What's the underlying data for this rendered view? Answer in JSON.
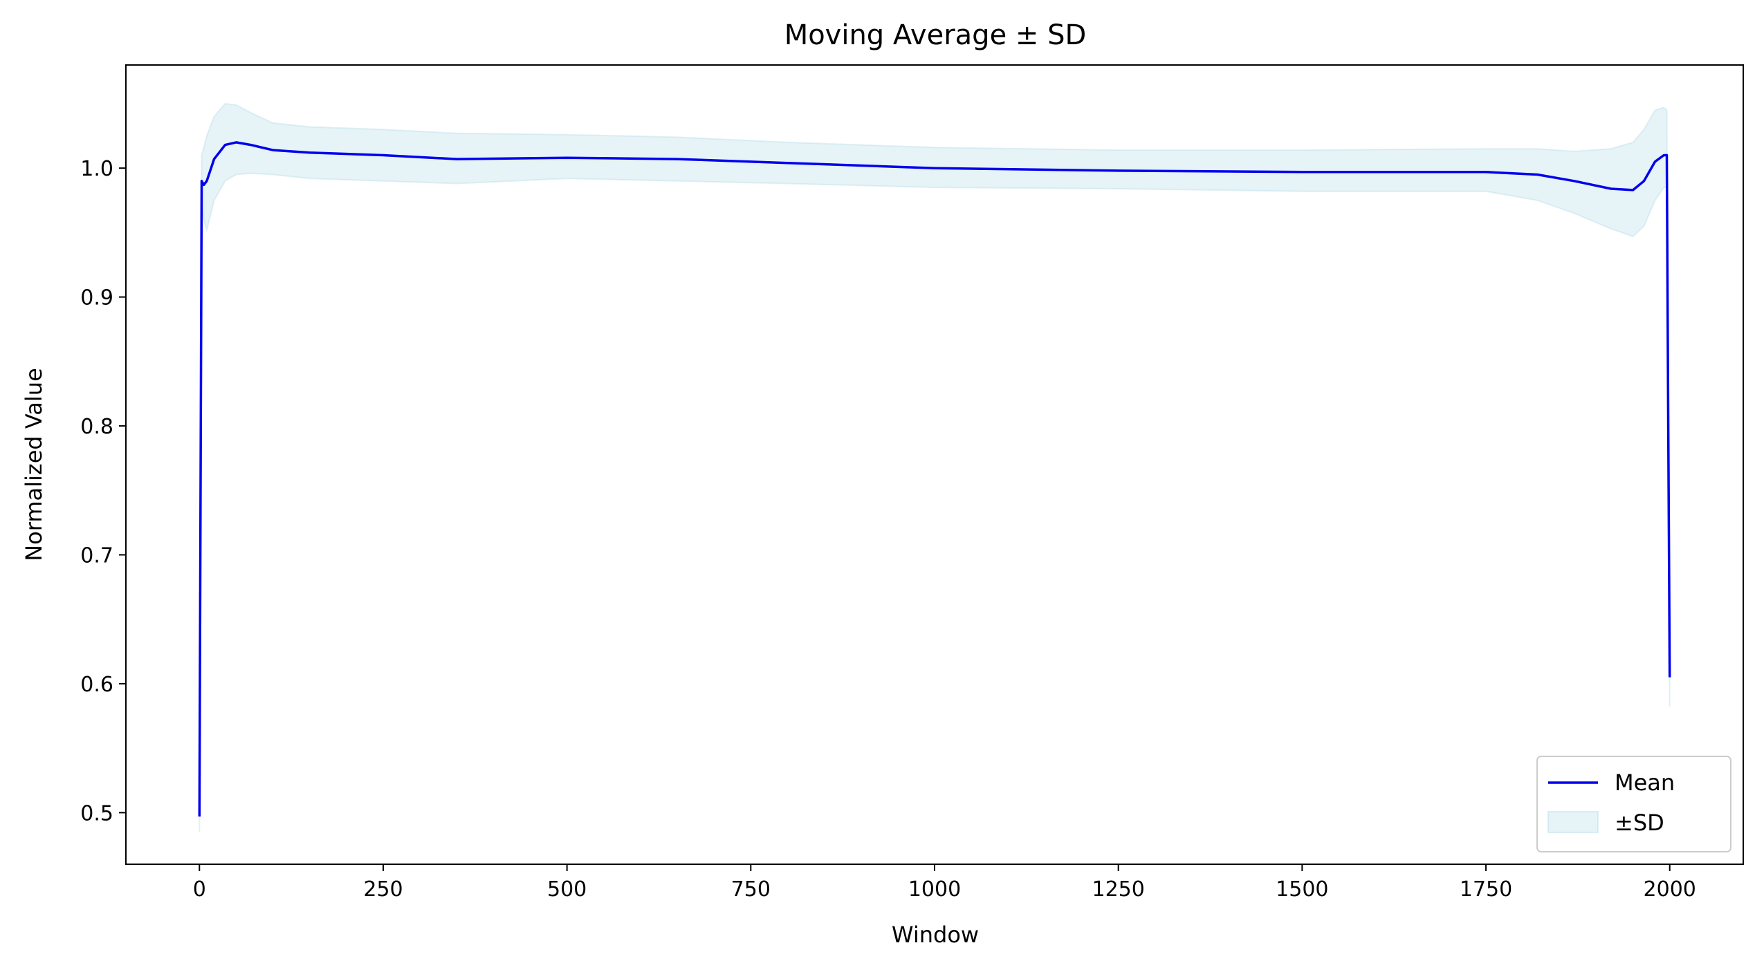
{
  "chart_data": {
    "type": "line",
    "title": "Moving Average ± SD",
    "xlabel": "Window",
    "ylabel": "Normalized Value",
    "xlim": [
      -100,
      2100
    ],
    "ylim": [
      0.46,
      1.08
    ],
    "xticks": [
      0,
      250,
      500,
      750,
      1000,
      1250,
      1500,
      1750,
      2000
    ],
    "xtick_labels": [
      "0",
      "250",
      "500",
      "750",
      "1000",
      "1250",
      "1500",
      "1750",
      "2000"
    ],
    "yticks": [
      0.5,
      0.6,
      0.7,
      0.8,
      0.9,
      1.0
    ],
    "ytick_labels": [
      "0.5",
      "0.6",
      "0.7",
      "0.8",
      "0.9",
      "1.0"
    ],
    "grid": false,
    "legend_position": "bottom-right",
    "colors": {
      "mean_line": "#0000ee",
      "sd_fill": "#add8e6"
    },
    "series": [
      {
        "name": "Mean",
        "kind": "line",
        "x": [
          0,
          3,
          6,
          10,
          20,
          35,
          50,
          70,
          100,
          150,
          250,
          350,
          500,
          650,
          800,
          1000,
          1250,
          1500,
          1750,
          1820,
          1870,
          1920,
          1950,
          1965,
          1980,
          1992,
          1996,
          1998,
          2000
        ],
        "y": [
          0.497,
          0.99,
          0.987,
          0.99,
          1.007,
          1.018,
          1.02,
          1.018,
          1.014,
          1.012,
          1.01,
          1.007,
          1.008,
          1.007,
          1.004,
          1.0,
          0.998,
          0.997,
          0.997,
          0.995,
          0.99,
          0.984,
          0.983,
          0.99,
          1.005,
          1.01,
          1.01,
          0.8,
          0.605
        ]
      },
      {
        "name": "±SD",
        "kind": "band",
        "x": [
          0,
          3,
          6,
          10,
          20,
          35,
          50,
          70,
          100,
          150,
          250,
          350,
          500,
          650,
          800,
          1000,
          1250,
          1500,
          1750,
          1820,
          1870,
          1920,
          1950,
          1965,
          1980,
          1992,
          1996,
          1998,
          2000
        ],
        "lower": [
          0.485,
          0.975,
          0.96,
          0.952,
          0.975,
          0.99,
          0.995,
          0.996,
          0.995,
          0.992,
          0.99,
          0.988,
          0.992,
          0.99,
          0.988,
          0.985,
          0.984,
          0.982,
          0.982,
          0.975,
          0.965,
          0.953,
          0.947,
          0.955,
          0.975,
          0.985,
          0.985,
          0.78,
          0.582
        ],
        "upper": [
          0.505,
          1.01,
          1.016,
          1.025,
          1.04,
          1.05,
          1.049,
          1.043,
          1.035,
          1.032,
          1.03,
          1.027,
          1.026,
          1.024,
          1.02,
          1.016,
          1.014,
          1.014,
          1.015,
          1.015,
          1.013,
          1.015,
          1.02,
          1.03,
          1.045,
          1.047,
          1.045,
          0.82,
          0.625
        ]
      }
    ]
  }
}
